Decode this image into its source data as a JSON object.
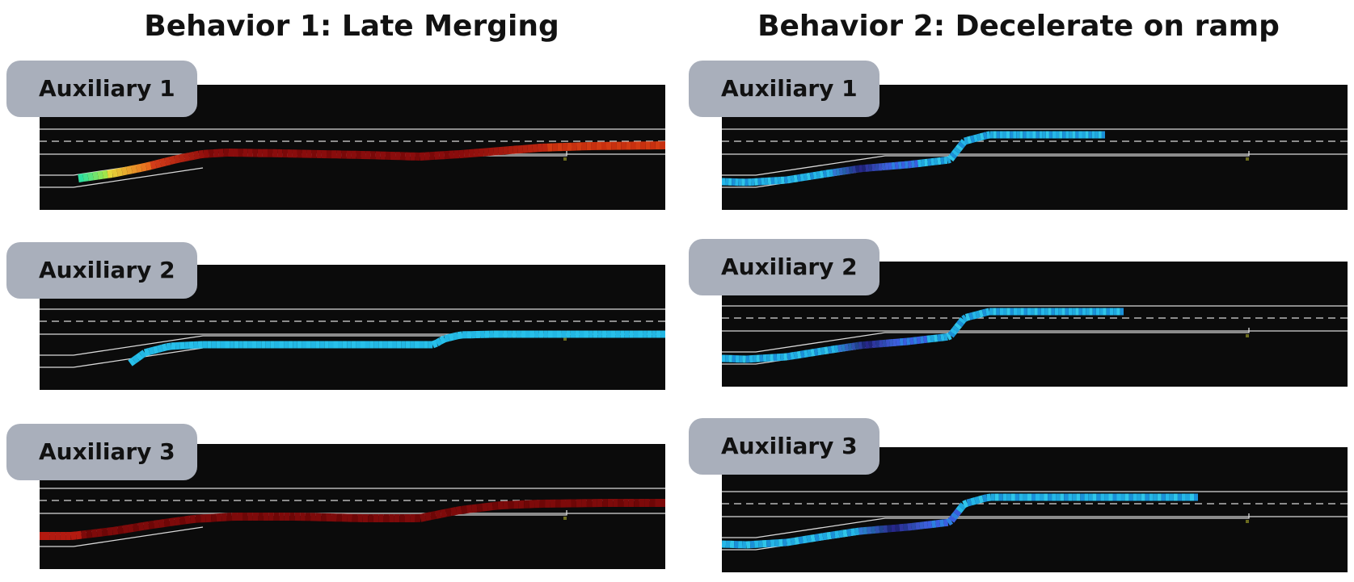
{
  "columns": [
    {
      "title": "Behavior 1: Late Merging",
      "panels": [
        {
          "label": "Auxiliary 1",
          "traj": "path1",
          "palette": "warm"
        },
        {
          "label": "Auxiliary 2",
          "traj": "path2",
          "palette": "cyan"
        },
        {
          "label": "Auxiliary 3",
          "traj": "path3",
          "palette": "darkred"
        }
      ]
    },
    {
      "title": "Behavior 2: Decelerate on ramp",
      "panels": [
        {
          "label": "Auxiliary 1",
          "traj": "path4",
          "palette": "cool"
        },
        {
          "label": "Auxiliary 2",
          "traj": "path4b",
          "palette": "cool"
        },
        {
          "label": "Auxiliary 3",
          "traj": "path4c",
          "palette": "cool"
        }
      ]
    }
  ],
  "colors": {
    "road_line": "#d9d9d9",
    "background": "#0b0b0b",
    "label_bg": "#a9afbb",
    "marker": "#6b6b1e"
  }
}
